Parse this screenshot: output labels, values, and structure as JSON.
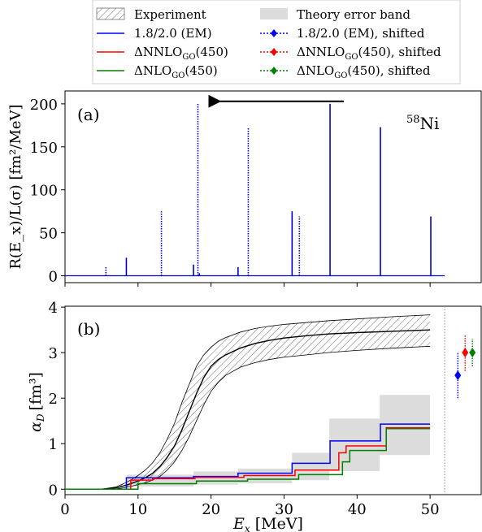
{
  "chart_data": [
    {
      "panel": "(a)",
      "type": "line",
      "annotation": "⁵⁸Ni",
      "ylabel": "R(E_x)/L(σ) [fm²/MeV]",
      "xlim": [
        0,
        57
      ],
      "ylim": [
        -8,
        215
      ],
      "y_ticks": [
        0,
        50,
        100,
        150,
        200
      ],
      "x_ticks": [
        0,
        10,
        20,
        30,
        40,
        50
      ],
      "series": [
        {
          "type": "sticks",
          "style": "solid",
          "color": "#0000cc",
          "points": [
            [
              8.4,
              21
            ],
            [
              17.6,
              13
            ],
            [
              18.4,
              3
            ],
            [
              23.7,
              10
            ],
            [
              31.1,
              75
            ],
            [
              36.3,
              200
            ],
            [
              43.2,
              173
            ],
            [
              50.1,
              69
            ]
          ]
        },
        {
          "type": "sticks",
          "style": "dotted",
          "color": "#0000cc",
          "points": [
            [
              5.6,
              10
            ],
            [
              13.2,
              75
            ],
            [
              18.2,
              200
            ],
            [
              25.1,
              173
            ],
            [
              32.1,
              69
            ]
          ]
        }
      ],
      "arrow": {
        "from": [
          38.2,
          203
        ],
        "to": [
          20.3,
          203
        ]
      }
    },
    {
      "panel": "(b)",
      "type": "line",
      "xlabel": "E_x [MeV]",
      "ylabel": "α_D [fm³]",
      "xlim": [
        0,
        57
      ],
      "ylim": [
        -0.12,
        4.02
      ],
      "y_ticks": [
        0,
        1,
        2,
        3,
        4
      ],
      "x_ticks": [
        0,
        10,
        20,
        30,
        40,
        50
      ],
      "experiment": {
        "x": [
          0,
          5,
          7,
          8,
          9,
          10,
          11,
          12,
          13,
          14,
          15,
          16,
          17,
          18,
          19,
          20,
          21,
          22,
          24,
          26,
          28,
          30,
          33,
          36,
          40,
          45,
          50
        ],
        "y": [
          0,
          0,
          0.03,
          0.07,
          0.12,
          0.18,
          0.25,
          0.35,
          0.5,
          0.7,
          0.95,
          1.3,
          1.7,
          2.1,
          2.45,
          2.7,
          2.85,
          2.95,
          3.1,
          3.2,
          3.27,
          3.32,
          3.37,
          3.41,
          3.44,
          3.47,
          3.5
        ],
        "upper": [
          0,
          0,
          0.05,
          0.12,
          0.2,
          0.3,
          0.42,
          0.58,
          0.8,
          1.1,
          1.45,
          1.9,
          2.3,
          2.7,
          2.95,
          3.12,
          3.25,
          3.33,
          3.45,
          3.53,
          3.58,
          3.62,
          3.66,
          3.7,
          3.74,
          3.79,
          3.83
        ],
        "lower": [
          0,
          0,
          0.01,
          0.03,
          0.06,
          0.1,
          0.14,
          0.2,
          0.28,
          0.42,
          0.6,
          0.85,
          1.15,
          1.5,
          1.85,
          2.15,
          2.35,
          2.5,
          2.68,
          2.78,
          2.85,
          2.9,
          2.95,
          3.0,
          3.05,
          3.1,
          3.14
        ]
      },
      "theory_band": {
        "x": [
          0,
          8.5,
          17.6,
          23.7,
          31.1,
          36.2,
          43.1,
          50
        ],
        "upper": [
          0,
          0.32,
          0.39,
          0.45,
          0.8,
          1.55,
          2.07,
          2.07
        ],
        "lower": [
          0,
          0.06,
          0.1,
          0.13,
          0.2,
          0.4,
          0.75,
          0.75
        ]
      },
      "series": [
        {
          "name": "1.8/2.0 (EM)",
          "color": "#0000ff",
          "x": [
            0,
            8.4,
            17.6,
            23.7,
            31.1,
            36.3,
            43.2,
            50
          ],
          "y": [
            0,
            0.25,
            0.28,
            0.35,
            0.57,
            1.06,
            1.43,
            1.43
          ]
        },
        {
          "name": "ΔNNLO_GO(450)",
          "color": "#ff0000",
          "x": [
            0,
            9,
            12,
            17.8,
            24.5,
            31.5,
            37.5,
            38.5,
            44,
            50
          ],
          "y": [
            0,
            0.2,
            0.23,
            0.26,
            0.3,
            0.42,
            0.8,
            0.95,
            1.35,
            1.35
          ]
        },
        {
          "name": "ΔNLO_GO(450)",
          "color": "#008000",
          "x": [
            0,
            10,
            18,
            25,
            32,
            38,
            39,
            44,
            50
          ],
          "y": [
            0,
            0.12,
            0.18,
            0.22,
            0.32,
            0.6,
            0.85,
            1.33,
            1.33
          ]
        }
      ],
      "shifted_points": [
        {
          "name": "1.8/2.0 (EM), shifted",
          "color": "#0000ff",
          "x": 53.8,
          "y": 2.5,
          "err": [
            2.0,
            3.0
          ]
        },
        {
          "name": "ΔNNLO_GO(450), shifted",
          "color": "#ff0000",
          "x": 54.8,
          "y": 3.0,
          "err": [
            2.6,
            3.4
          ]
        },
        {
          "name": "ΔNLO_GO(450), shifted",
          "color": "#008000",
          "x": 55.8,
          "y": 3.0,
          "err": [
            2.7,
            3.3
          ]
        }
      ],
      "vline_x": 52
    }
  ],
  "legend": {
    "experiment": "Experiment",
    "em": "1.8/2.0 (EM)",
    "nnlo_pre": "ΔNNLO",
    "nnlo_sub": "GO",
    "nnlo_post": "(450)",
    "nlo_pre": "ΔNLO",
    "nlo_sub": "GO",
    "nlo_post": "(450)",
    "band": "Theory error band",
    "em_shift": "1.8/2.0 (EM), shifted",
    "nnlo_shift_pre": "ΔNNLO",
    "nnlo_shift_sub": "GO",
    "nnlo_shift_post": "(450), shifted",
    "nlo_shift_pre": "ΔNLO",
    "nlo_shift_sub": "GO",
    "nlo_shift_post": "(450), shifted"
  },
  "labels": {
    "panel_a": "(a)",
    "panel_b": "(b)",
    "nucleus_sup": "58",
    "nucleus": "Ni",
    "ylabel_a": "R(E_x)/L(σ) [fm²/MeV]",
    "ylabel_b_main": "α",
    "ylabel_b_sub": "D",
    "ylabel_b_unit": "[fm³]",
    "xlabel_main": "E",
    "xlabel_sub": "x",
    "xlabel_unit": " [MeV]"
  }
}
